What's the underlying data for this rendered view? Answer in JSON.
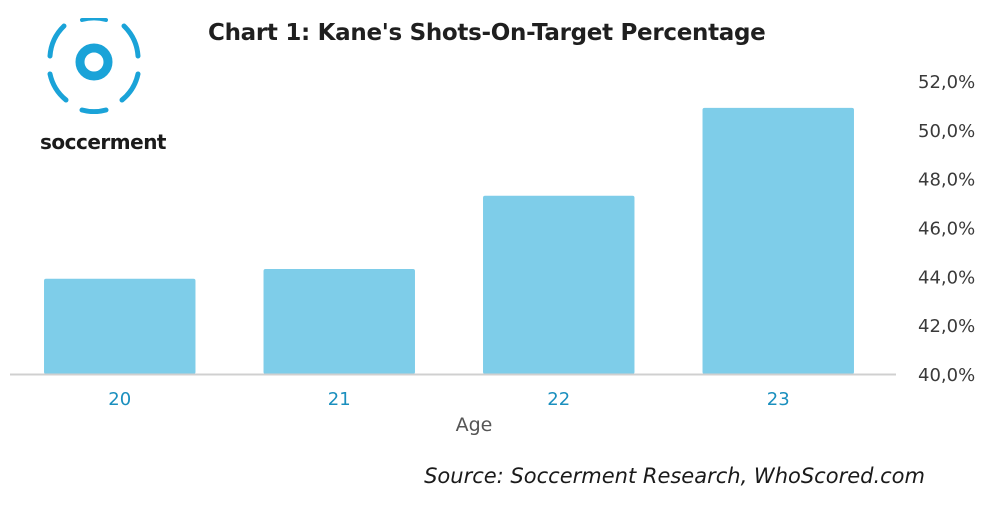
{
  "brand": {
    "name": "soccerment"
  },
  "chart_data": {
    "type": "bar",
    "title": "Chart 1: Kane's Shots-On-Target Percentage",
    "categories": [
      "20",
      "21",
      "22",
      "23"
    ],
    "values": [
      43.9,
      44.3,
      47.3,
      50.9
    ],
    "xlabel": "Age",
    "ylabel": "",
    "ylim": [
      40,
      52
    ],
    "yticks": [
      "40,0%",
      "42,0%",
      "44,0%",
      "46,0%",
      "48,0%",
      "50,0%",
      "52,0%"
    ],
    "grid": false,
    "y_axis_side": "right",
    "colors": {
      "bar": "#7ecde9",
      "tick_x": "#1a8fbe",
      "axis": "#d0d0d0",
      "tick_y": "#3a3a3a"
    }
  },
  "source": "Source: Soccerment Research, WhoScored.com"
}
